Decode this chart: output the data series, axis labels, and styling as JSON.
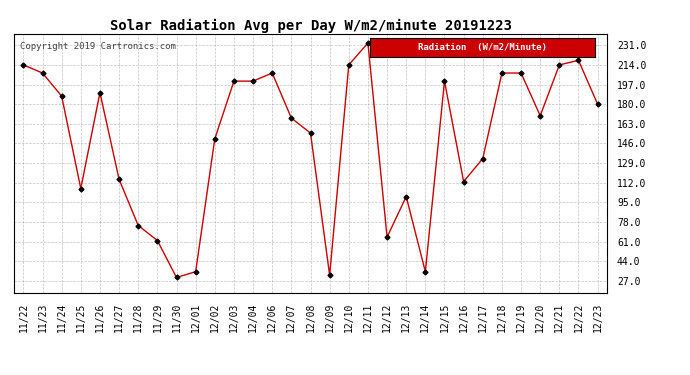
{
  "title": "Solar Radiation Avg per Day W/m2/minute 20191223",
  "copyright": "Copyright 2019 Cartronics.com",
  "legend_label": "Radiation  (W/m2/Minute)",
  "dates": [
    "11/22",
    "11/23",
    "11/24",
    "11/25",
    "11/26",
    "11/27",
    "11/28",
    "11/29",
    "11/30",
    "12/01",
    "12/02",
    "12/03",
    "12/04",
    "12/06",
    "12/07",
    "12/08",
    "12/09",
    "12/10",
    "12/11",
    "12/12",
    "12/13",
    "12/14",
    "12/15",
    "12/16",
    "12/17",
    "12/18",
    "12/19",
    "12/20",
    "12/21",
    "12/22",
    "12/23"
  ],
  "values": [
    214,
    207,
    187,
    107,
    190,
    115,
    75,
    62,
    30,
    35,
    150,
    200,
    200,
    207,
    168,
    155,
    32,
    214,
    233,
    65,
    100,
    35,
    200,
    113,
    133,
    207,
    207,
    170,
    214,
    218,
    180
  ],
  "line_color": "#cc0000",
  "marker_color": "#000000",
  "background_color": "#ffffff",
  "grid_color": "#aaaaaa",
  "yticks": [
    27.0,
    44.0,
    61.0,
    78.0,
    95.0,
    112.0,
    129.0,
    146.0,
    163.0,
    180.0,
    197.0,
    214.0,
    231.0
  ],
  "ylim": [
    17.0,
    241.0
  ],
  "title_fontsize": 10,
  "axis_fontsize": 7,
  "copyright_fontsize": 6.5,
  "legend_bg": "#cc0000",
  "legend_text_color": "#ffffff",
  "legend_fontsize": 6.5
}
